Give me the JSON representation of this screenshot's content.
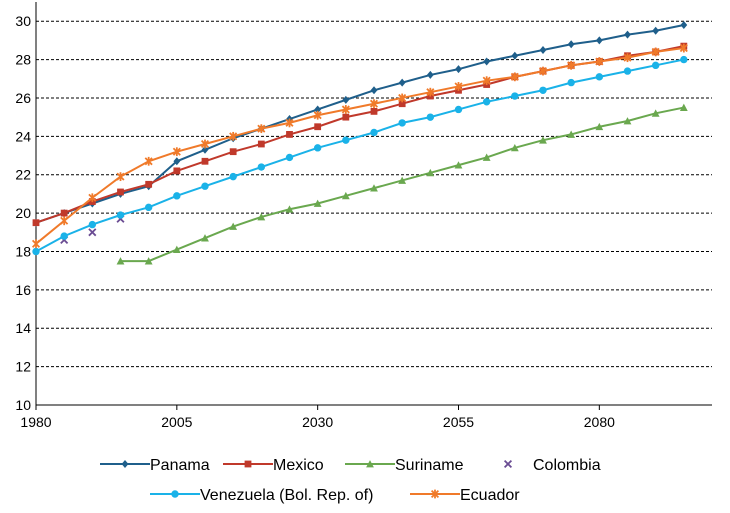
{
  "chart_data": {
    "type": "line",
    "title": "",
    "xlabel": "",
    "ylabel": "",
    "xlim": [
      1980,
      2100
    ],
    "ylim": [
      10,
      31
    ],
    "x_ticks": [
      1980,
      2005,
      2030,
      2055,
      2080
    ],
    "x_tick_labels": [
      "1980",
      "2005",
      "2030",
      "2055",
      "2080"
    ],
    "y_ticks": [
      10,
      12,
      14,
      16,
      18,
      20,
      22,
      24,
      26,
      28,
      30
    ],
    "y_tick_labels": [
      "10",
      "12",
      "14",
      "16",
      "18",
      "20",
      "22",
      "24",
      "26",
      "28",
      "30"
    ],
    "grid": "horizontal dashed",
    "legend_position": "bottom",
    "series": [
      {
        "name": "Panama",
        "color": "#1f5f8b",
        "marker": "diamond",
        "x": [
          1980,
          1985,
          1990,
          1995,
          2000,
          2005,
          2010,
          2015,
          2020,
          2025,
          2030,
          2035,
          2040,
          2045,
          2050,
          2055,
          2060,
          2065,
          2070,
          2075,
          2080,
          2085,
          2090,
          2095
        ],
        "values": [
          19.5,
          20.0,
          20.5,
          21.0,
          21.4,
          22.7,
          23.3,
          23.9,
          24.4,
          24.9,
          25.4,
          25.9,
          26.4,
          26.8,
          27.2,
          27.5,
          27.9,
          28.2,
          28.5,
          28.8,
          29.0,
          29.3,
          29.5,
          29.8
        ]
      },
      {
        "name": "Mexico",
        "color": "#c0392b",
        "marker": "square",
        "x": [
          1980,
          1985,
          1990,
          1995,
          2000,
          2005,
          2010,
          2015,
          2020,
          2025,
          2030,
          2035,
          2040,
          2045,
          2050,
          2055,
          2060,
          2065,
          2070,
          2075,
          2080,
          2085,
          2090,
          2095
        ],
        "values": [
          19.5,
          20.0,
          20.6,
          21.1,
          21.5,
          22.2,
          22.7,
          23.2,
          23.6,
          24.1,
          24.5,
          25.0,
          25.3,
          25.7,
          26.1,
          26.4,
          26.7,
          27.1,
          27.4,
          27.7,
          27.9,
          28.2,
          28.4,
          28.7
        ]
      },
      {
        "name": "Suriname",
        "color": "#6aa84f",
        "marker": "triangle",
        "x": [
          1995,
          2000,
          2005,
          2010,
          2015,
          2020,
          2025,
          2030,
          2035,
          2040,
          2045,
          2050,
          2055,
          2060,
          2065,
          2070,
          2075,
          2080,
          2085,
          2090,
          2095
        ],
        "values": [
          17.5,
          17.5,
          18.1,
          18.7,
          19.3,
          19.8,
          20.2,
          20.5,
          20.9,
          21.3,
          21.7,
          22.1,
          22.5,
          22.9,
          23.4,
          23.8,
          24.1,
          24.5,
          24.8,
          25.2,
          25.5
        ]
      },
      {
        "name": "Colombia",
        "color": "#6a4c93",
        "marker": "x",
        "x": [
          1985,
          1990,
          1995
        ],
        "values": [
          18.6,
          19.0,
          19.7
        ]
      },
      {
        "name": "Venezuela (Bol. Rep. of)",
        "color": "#1ab2e8",
        "marker": "circle",
        "x": [
          1980,
          1985,
          1990,
          1995,
          2000,
          2005,
          2010,
          2015,
          2020,
          2025,
          2030,
          2035,
          2040,
          2045,
          2050,
          2055,
          2060,
          2065,
          2070,
          2075,
          2080,
          2085,
          2090,
          2095
        ],
        "values": [
          18.0,
          18.8,
          19.4,
          19.9,
          20.3,
          20.9,
          21.4,
          21.9,
          22.4,
          22.9,
          23.4,
          23.8,
          24.2,
          24.7,
          25.0,
          25.4,
          25.8,
          26.1,
          26.4,
          26.8,
          27.1,
          27.4,
          27.7,
          28.0
        ]
      },
      {
        "name": "Ecuador",
        "color": "#f07a2a",
        "marker": "asterisk",
        "x": [
          1980,
          1985,
          1990,
          1995,
          2000,
          2005,
          2010,
          2015,
          2020,
          2025,
          2030,
          2035,
          2040,
          2045,
          2050,
          2055,
          2060,
          2065,
          2070,
          2075,
          2080,
          2085,
          2090,
          2095
        ],
        "values": [
          18.4,
          19.6,
          20.8,
          21.9,
          22.7,
          23.2,
          23.6,
          24.0,
          24.4,
          24.7,
          25.1,
          25.4,
          25.7,
          26.0,
          26.3,
          26.6,
          26.9,
          27.1,
          27.4,
          27.7,
          27.9,
          28.1,
          28.4,
          28.6
        ]
      }
    ]
  }
}
